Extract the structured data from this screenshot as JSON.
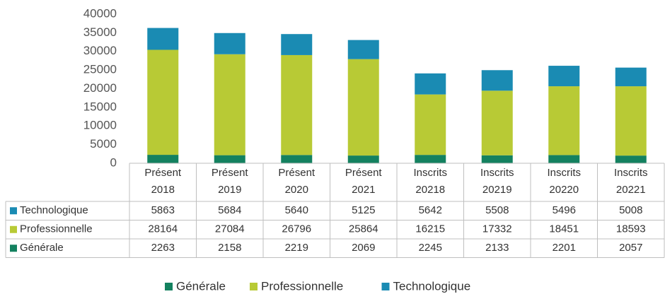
{
  "chart_data": {
    "type": "stacked_bar",
    "categories": [
      "Présent 2018",
      "Présent 2019",
      "Présent 2020",
      "Présent 2021",
      "Inscrits 20218",
      "Inscrits 20219",
      "Inscrits 20220",
      "Inscrits 20221"
    ],
    "series": [
      {
        "name": "Générale",
        "color": "#13815f",
        "values": [
          2263,
          2158,
          2219,
          2069,
          2245,
          2133,
          2201,
          2057
        ]
      },
      {
        "name": "Professionnelle",
        "color": "#b8ca35",
        "values": [
          28164,
          27084,
          26796,
          25864,
          16215,
          17332,
          18451,
          18593
        ]
      },
      {
        "name": "Technologique",
        "color": "#1a8bb3",
        "values": [
          5863,
          5684,
          5640,
          5125,
          5642,
          5508,
          5496,
          5008
        ]
      }
    ],
    "ylim": [
      0,
      40000
    ],
    "yticks": [
      0,
      5000,
      10000,
      15000,
      20000,
      25000,
      30000,
      35000,
      40000
    ],
    "grid": false,
    "legend": "bottom",
    "data_table": true
  }
}
